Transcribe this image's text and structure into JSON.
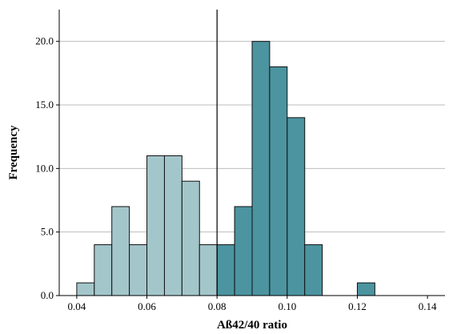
{
  "chart_data": {
    "type": "bar",
    "title": "",
    "xlabel": "Aß42/40 ratio",
    "ylabel": "Frequency",
    "xlim": [
      0.035,
      0.145
    ],
    "ylim": [
      0,
      22.5
    ],
    "xticks": [
      0.04,
      0.06,
      0.08,
      0.1,
      0.12,
      0.14
    ],
    "xtick_labels": [
      "0.04",
      "0.06",
      "0.08",
      "0.10",
      "0.12",
      "0.14"
    ],
    "yticks": [
      0,
      5,
      10,
      15,
      20
    ],
    "ytick_labels": [
      "0.0",
      "5.0",
      "10.0",
      "15.0",
      "20.0"
    ],
    "grid": true,
    "bin_width": 0.005,
    "cutoff": 0.08,
    "colors": {
      "below_cutoff": "#a3c6cb",
      "above_cutoff": "#4b94a0"
    },
    "series": [
      {
        "group": "below",
        "bin_starts": [
          0.04,
          0.045,
          0.05,
          0.055,
          0.06,
          0.065,
          0.07,
          0.075
        ],
        "values": [
          1,
          4,
          7,
          4,
          11,
          11,
          9,
          4
        ]
      },
      {
        "group": "above",
        "bin_starts": [
          0.08,
          0.085,
          0.09,
          0.095,
          0.1,
          0.105,
          0.12
        ],
        "values": [
          4,
          7,
          20,
          18,
          14,
          4,
          1
        ]
      }
    ]
  }
}
